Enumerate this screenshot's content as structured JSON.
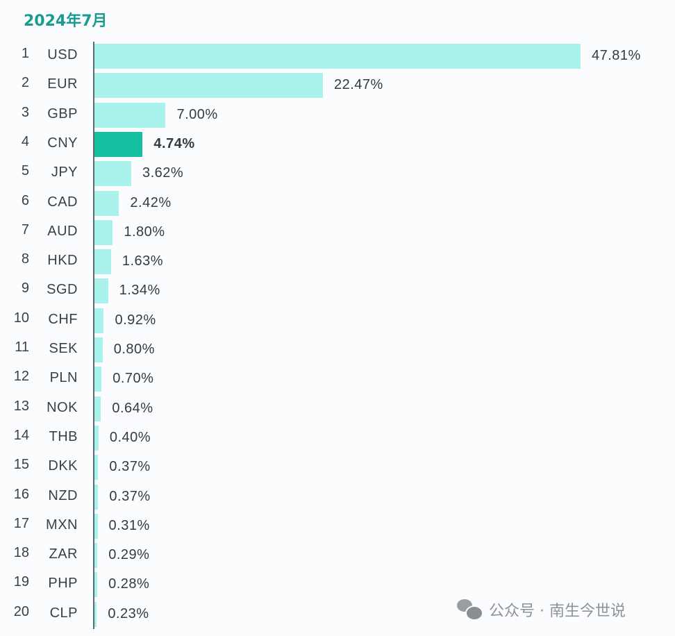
{
  "title": "2024年7月",
  "watermark": {
    "icon": "wechat-icon",
    "text": "公众号 · 南生今世说"
  },
  "colors": {
    "bar": "#a9f1eb",
    "highlight_bar": "#14bfa0",
    "title": "#1a9b92"
  },
  "rows": [
    {
      "rank": "1",
      "code": "USD",
      "value": "47.81%"
    },
    {
      "rank": "2",
      "code": "EUR",
      "value": "22.47%"
    },
    {
      "rank": "3",
      "code": "GBP",
      "value": "7.00%"
    },
    {
      "rank": "4",
      "code": "CNY",
      "value": "4.74%"
    },
    {
      "rank": "5",
      "code": "JPY",
      "value": "3.62%"
    },
    {
      "rank": "6",
      "code": "CAD",
      "value": "2.42%"
    },
    {
      "rank": "7",
      "code": "AUD",
      "value": "1.80%"
    },
    {
      "rank": "8",
      "code": "HKD",
      "value": "1.63%"
    },
    {
      "rank": "9",
      "code": "SGD",
      "value": "1.34%"
    },
    {
      "rank": "10",
      "code": "CHF",
      "value": "0.92%"
    },
    {
      "rank": "11",
      "code": "SEK",
      "value": "0.80%"
    },
    {
      "rank": "12",
      "code": "PLN",
      "value": "0.70%"
    },
    {
      "rank": "13",
      "code": "NOK",
      "value": "0.64%"
    },
    {
      "rank": "14",
      "code": "THB",
      "value": "0.40%"
    },
    {
      "rank": "15",
      "code": "DKK",
      "value": "0.37%"
    },
    {
      "rank": "16",
      "code": "NZD",
      "value": "0.37%"
    },
    {
      "rank": "17",
      "code": "MXN",
      "value": "0.31%"
    },
    {
      "rank": "18",
      "code": "ZAR",
      "value": "0.29%"
    },
    {
      "rank": "19",
      "code": "PHP",
      "value": "0.28%"
    },
    {
      "rank": "20",
      "code": "CLP",
      "value": "0.23%"
    }
  ],
  "chart_data": {
    "type": "bar",
    "orientation": "horizontal",
    "title": "2024年7月",
    "xlabel": "",
    "ylabel": "",
    "categories": [
      "USD",
      "EUR",
      "GBP",
      "CNY",
      "JPY",
      "CAD",
      "AUD",
      "HKD",
      "SGD",
      "CHF",
      "SEK",
      "PLN",
      "NOK",
      "THB",
      "DKK",
      "NZD",
      "MXN",
      "ZAR",
      "PHP",
      "CLP"
    ],
    "ranks": [
      1,
      2,
      3,
      4,
      5,
      6,
      7,
      8,
      9,
      10,
      11,
      12,
      13,
      14,
      15,
      16,
      17,
      18,
      19,
      20
    ],
    "values": [
      47.81,
      22.47,
      7.0,
      4.74,
      3.62,
      2.42,
      1.8,
      1.63,
      1.34,
      0.92,
      0.8,
      0.7,
      0.64,
      0.4,
      0.37,
      0.37,
      0.31,
      0.29,
      0.28,
      0.23
    ],
    "unit": "%",
    "highlighted": "CNY",
    "grid": false,
    "legend": null
  }
}
